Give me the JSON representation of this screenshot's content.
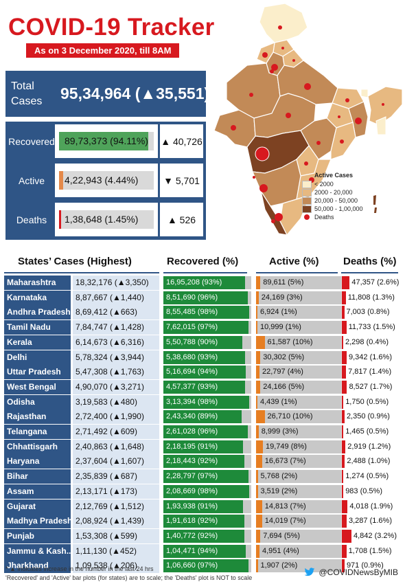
{
  "header": {
    "title": "COVID-19 Tracker",
    "subtitle": "As on 3 December 2020, till 8AM"
  },
  "total": {
    "label": "Total Cases",
    "value": "95,34,964",
    "change": "(▲35,551)"
  },
  "summary": [
    {
      "label": "Recovered",
      "value": "89,73,373 (94.11%)",
      "pct": 94.11,
      "color": "#4fa35a",
      "change": "▲ 40,726"
    },
    {
      "label": "Active",
      "value": "4,22,943 (4.44%)",
      "pct": 4.44,
      "color": "#e4894a",
      "change": "▼ 5,701"
    },
    {
      "label": "Deaths",
      "value": "1,38,648 (1.45%)",
      "pct": 1.45,
      "color": "#d7191f",
      "change": "▲ 526"
    }
  ],
  "legend": {
    "title": "Active Cases",
    "items": [
      {
        "label": "< 2000",
        "color": "#fbeecb"
      },
      {
        "label": "2000 - 20,000",
        "color": "#e7b981"
      },
      {
        "label": "20,000 - 50,000",
        "color": "#c28a57"
      },
      {
        "label": "50,000 - 1,00,000",
        "color": "#7d4222"
      },
      {
        "label": "Deaths",
        "color": "#d7191f"
      }
    ]
  },
  "table_headers": {
    "states": "States’ Cases (Highest)",
    "recovered": "Recovered (%)",
    "active": "Active (%)",
    "deaths": "Deaths (%)"
  },
  "chart_data": {
    "type": "table",
    "columns": [
      "State",
      "Total",
      "Recovered",
      "Active",
      "Deaths"
    ],
    "rows": [
      {
        "state": "Maharashtra",
        "total": "18,32,176 (▲3,350)",
        "rec": "16,95,208 (93%)",
        "rec_pct": 93,
        "act": "89,611 (5%)",
        "act_pct": 5,
        "dth": "47,357 (2.6%)",
        "dth_pct": 2.6
      },
      {
        "state": "Karnataka",
        "total": "8,87,667 (▲1,440)",
        "rec": "8,51,690 (96%)",
        "rec_pct": 96,
        "act": "24,169 (3%)",
        "act_pct": 3,
        "dth": "11,808 (1.3%)",
        "dth_pct": 1.3
      },
      {
        "state": "Andhra Pradesh",
        "total": "8,69,412 (▲663)",
        "rec": "8,55,485 (98%)",
        "rec_pct": 98,
        "act": "6,924 (1%)",
        "act_pct": 1,
        "dth": "7,003 (0.8%)",
        "dth_pct": 0.8
      },
      {
        "state": "Tamil Nadu",
        "total": "7,84,747 (▲1,428)",
        "rec": "7,62,015 (97%)",
        "rec_pct": 97,
        "act": "10,999 (1%)",
        "act_pct": 1,
        "dth": "11,733 (1.5%)",
        "dth_pct": 1.5
      },
      {
        "state": "Kerala",
        "total": "6,14,673 (▲6,316)",
        "rec": "5,50,788 (90%)",
        "rec_pct": 90,
        "act": "61,587 (10%)",
        "act_pct": 10,
        "dth": "2,298 (0.4%)",
        "dth_pct": 0.4
      },
      {
        "state": "Delhi",
        "total": "5,78,324 (▲3,944)",
        "rec": "5,38,680 (93%)",
        "rec_pct": 93,
        "act": "30,302 (5%)",
        "act_pct": 5,
        "dth": "9,342 (1.6%)",
        "dth_pct": 1.6
      },
      {
        "state": "Uttar Pradesh",
        "total": "5,47,308 (▲1,763)",
        "rec": "5,16,694 (94%)",
        "rec_pct": 94,
        "act": "22,797 (4%)",
        "act_pct": 4,
        "dth": "7,817 (1.4%)",
        "dth_pct": 1.4
      },
      {
        "state": "West Bengal",
        "total": "4,90,070 (▲3,271)",
        "rec": "4,57,377 (93%)",
        "rec_pct": 93,
        "act": "24,166 (5%)",
        "act_pct": 5,
        "dth": "8,527 (1.7%)",
        "dth_pct": 1.7
      },
      {
        "state": "Odisha",
        "total": "3,19,583 (▲480)",
        "rec": "3,13,394 (98%)",
        "rec_pct": 98,
        "act": "4,439 (1%)",
        "act_pct": 1,
        "dth": "1,750 (0.5%)",
        "dth_pct": 0.5
      },
      {
        "state": "Rajasthan",
        "total": "2,72,400 (▲1,990)",
        "rec": "2,43,340 (89%)",
        "rec_pct": 89,
        "act": "26,710 (10%)",
        "act_pct": 10,
        "dth": "2,350 (0.9%)",
        "dth_pct": 0.9
      },
      {
        "state": "Telangana",
        "total": "2,71,492 (▲609)",
        "rec": "2,61,028 (96%)",
        "rec_pct": 96,
        "act": "8,999 (3%)",
        "act_pct": 3,
        "dth": "1,465 (0.5%)",
        "dth_pct": 0.5
      },
      {
        "state": "Chhattisgarh",
        "total": "2,40,863 (▲1,648)",
        "rec": "2,18,195 (91%)",
        "rec_pct": 91,
        "act": "19,749 (8%)",
        "act_pct": 8,
        "dth": "2,919 (1.2%)",
        "dth_pct": 1.2
      },
      {
        "state": "Haryana",
        "total": "2,37,604 (▲1,607)",
        "rec": "2,18,443 (92%)",
        "rec_pct": 92,
        "act": "16,673 (7%)",
        "act_pct": 7,
        "dth": "2,488 (1.0%)",
        "dth_pct": 1.0
      },
      {
        "state": "Bihar",
        "total": "2,35,839 (▲687)",
        "rec": "2,28,797 (97%)",
        "rec_pct": 97,
        "act": "5,768 (2%)",
        "act_pct": 2,
        "dth": "1,274 (0.5%)",
        "dth_pct": 0.5
      },
      {
        "state": "Assam",
        "total": "2,13,171 (▲173)",
        "rec": "2,08,669 (98%)",
        "rec_pct": 98,
        "act": "3,519 (2%)",
        "act_pct": 2,
        "dth": "983 (0.5%)",
        "dth_pct": 0.5
      },
      {
        "state": "Gujarat",
        "total": "2,12,769 (▲1,512)",
        "rec": "1,93,938 (91%)",
        "rec_pct": 91,
        "act": "14,813 (7%)",
        "act_pct": 7,
        "dth": "4,018 (1.9%)",
        "dth_pct": 1.9
      },
      {
        "state": "Madhya Pradesh",
        "total": "2,08,924 (▲1,439)",
        "rec": "1,91,618 (92%)",
        "rec_pct": 92,
        "act": "14,019 (7%)",
        "act_pct": 7,
        "dth": "3,287 (1.6%)",
        "dth_pct": 1.6
      },
      {
        "state": "Punjab",
        "total": "1,53,308 (▲599)",
        "rec": "1,40,772 (92%)",
        "rec_pct": 92,
        "act": "7,694 (5%)",
        "act_pct": 5,
        "dth": "4,842 (3.2%)",
        "dth_pct": 3.2
      },
      {
        "state": "Jammu & Kash..",
        "total": "1,11,130 (▲452)",
        "rec": "1,04,471 (94%)",
        "rec_pct": 94,
        "act": "4,951 (4%)",
        "act_pct": 4,
        "dth": "1,708 (1.5%)",
        "dth_pct": 1.5
      },
      {
        "state": "Jharkhand",
        "total": "1,09,538 (▲206)",
        "rec": "1,06,660 (97%)",
        "rec_pct": 97,
        "act": "1,907 (2%)",
        "act_pct": 2,
        "dth": "971 (0.9%)",
        "dth_pct": 0.9
      }
    ]
  },
  "footer": {
    "note1": "* ▲ indicates increase in the number in the last 24 hrs",
    "note2": "'Recovered' and 'Active' bar plots (for states) are to scale; the 'Deaths' plot is NOT to scale",
    "twitter_handle": "@COVIDNewsByMIB",
    "twitter_icon": "twitter-bird-icon"
  }
}
